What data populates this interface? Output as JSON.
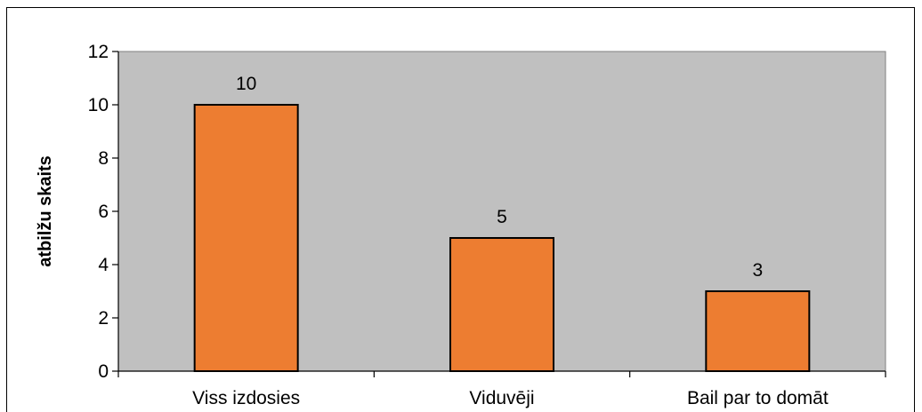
{
  "chart_data": {
    "type": "bar",
    "categories": [
      "Viss izdosies",
      "Viduvēji",
      "Bail par to domāt"
    ],
    "values": [
      10,
      5,
      3
    ],
    "data_labels": [
      "10",
      "5",
      "3"
    ],
    "title": "",
    "xlabel": "",
    "ylabel": "atbilžu skaits",
    "ylim": [
      0,
      12
    ],
    "yticks": [
      0,
      2,
      4,
      6,
      8,
      10,
      12
    ],
    "grid": false,
    "legend": "none",
    "colors": {
      "plot_background": "#c0c0c0",
      "bar_fill": "#ed7d31",
      "bar_stroke": "#000000"
    }
  }
}
